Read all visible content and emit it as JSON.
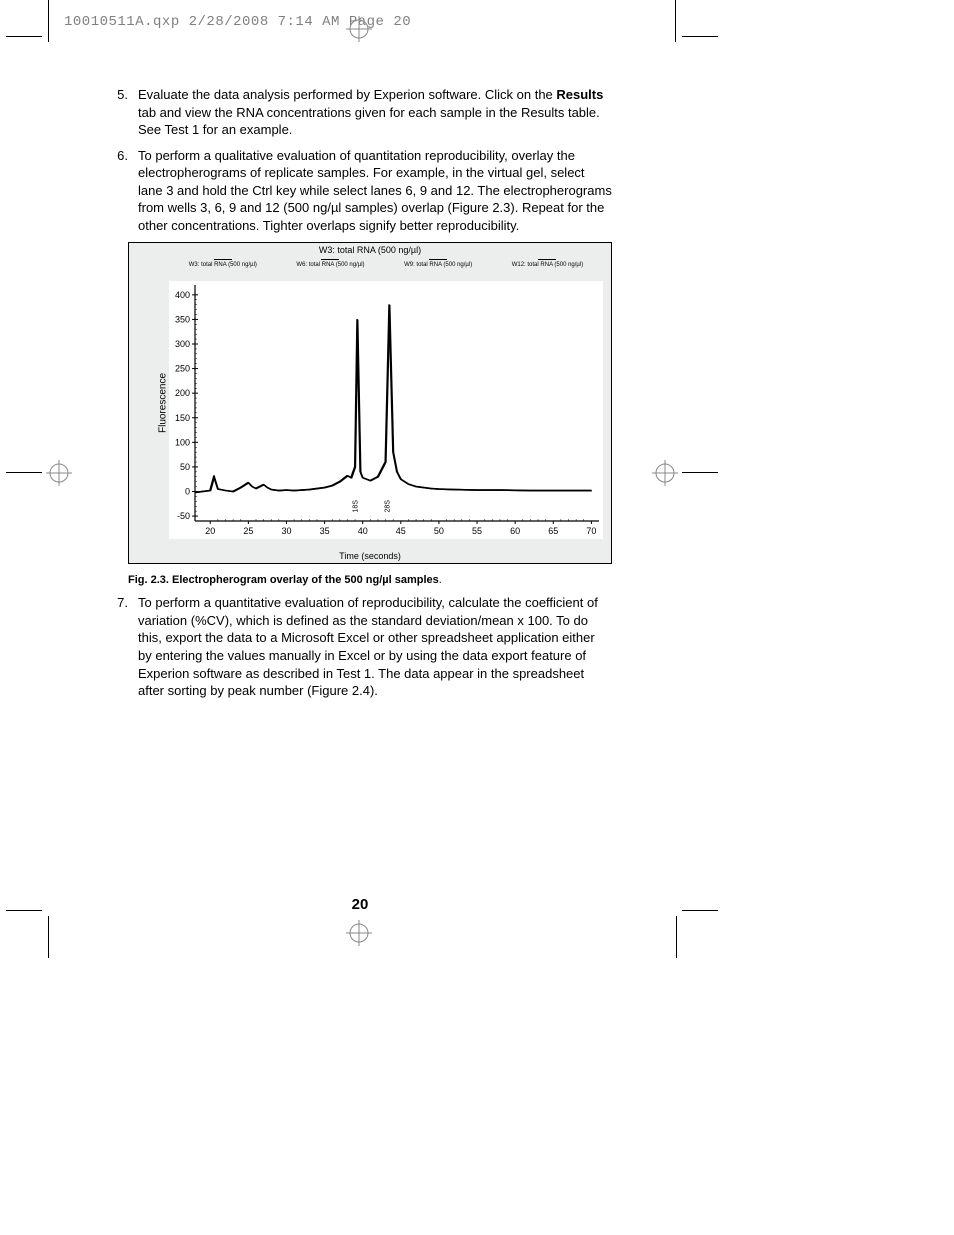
{
  "header": {
    "slug": "10010511A.qxp  2/28/2008  7:14 AM  Page 20"
  },
  "items": [
    {
      "num": "5.",
      "text_before": "Evaluate the data analysis performed by Experion software. Click on the ",
      "bold": "Results",
      "text_after": " tab and view the RNA concentrations given for each sample in the Results table. See Test 1 for an example."
    },
    {
      "num": "6.",
      "text": "To perform a qualitative evaluation of quantitation reproducibility, overlay the electropherograms of replicate samples. For example, in the virtual gel, select lane 3 and hold the Ctrl key while select lanes 6, 9 and 12. The electropherograms from wells 3, 6, 9 and 12 (500 ng/µl samples) overlap (Figure 2.3). Repeat for the other concentrations. Tighter overlaps signify better reproducibility."
    },
    {
      "num": "7.",
      "text": "To perform a quantitative evaluation of reproducibility, calculate the coefficient of variation (%CV), which is defined as the standard deviation/mean x 100. To do this, export the data to a Microsoft Excel or other spreadsheet application either by entering the values manually in Excel or by using the data export feature of Experion software as described in Test 1. The data appear in the spreadsheet after sorting by peak number (Figure 2.4)."
    }
  ],
  "chart": {
    "type": "line",
    "title": "W3: total RNA (500 ng/µl)",
    "legend": [
      "W3: total RNA (500 ng/µl)",
      "W6: total RNA (500 ng/µl)",
      "W9: total RNA (500 ng/µl)",
      "W12: total RNA (500 ng/µl)"
    ],
    "y_label": "Fluorescence",
    "x_label": "Time (seconds)",
    "y_ticks": [
      -50,
      0,
      50,
      100,
      150,
      200,
      250,
      300,
      350,
      400
    ],
    "x_ticks": [
      20,
      25,
      30,
      35,
      40,
      45,
      50,
      55,
      60,
      65,
      70
    ],
    "xlim": [
      18,
      71
    ],
    "ylim": [
      -60,
      420
    ],
    "series_color": "#000000",
    "background_color": "#eceeee",
    "plot_background": "#ffffff",
    "grid": false,
    "peak_markers": [
      "18S",
      "28S"
    ],
    "trace": [
      [
        18,
        -2
      ],
      [
        19,
        0
      ],
      [
        20,
        2
      ],
      [
        20.5,
        30
      ],
      [
        21,
        5
      ],
      [
        22,
        2
      ],
      [
        23,
        0
      ],
      [
        24,
        8
      ],
      [
        25,
        18
      ],
      [
        25.5,
        10
      ],
      [
        26,
        6
      ],
      [
        27,
        14
      ],
      [
        27.5,
        8
      ],
      [
        28,
        4
      ],
      [
        29,
        2
      ],
      [
        30,
        3
      ],
      [
        31,
        2
      ],
      [
        32,
        3
      ],
      [
        33,
        4
      ],
      [
        34,
        6
      ],
      [
        35,
        8
      ],
      [
        36,
        12
      ],
      [
        37,
        20
      ],
      [
        38,
        32
      ],
      [
        38.5,
        28
      ],
      [
        39,
        50
      ],
      [
        39.3,
        350
      ],
      [
        39.7,
        40
      ],
      [
        40,
        28
      ],
      [
        41,
        22
      ],
      [
        42,
        30
      ],
      [
        42.5,
        45
      ],
      [
        43,
        60
      ],
      [
        43.5,
        380
      ],
      [
        44,
        80
      ],
      [
        44.5,
        40
      ],
      [
        45,
        25
      ],
      [
        46,
        15
      ],
      [
        47,
        10
      ],
      [
        48,
        8
      ],
      [
        49,
        6
      ],
      [
        50,
        5
      ],
      [
        52,
        4
      ],
      [
        55,
        3
      ],
      [
        58,
        3
      ],
      [
        62,
        2
      ],
      [
        66,
        2
      ],
      [
        70,
        2
      ]
    ]
  },
  "figure_caption": {
    "label": "Fig. 2.3.  Electropherogram overlay of the 500 ng/µl samples",
    "suffix": "."
  },
  "page_number": "20",
  "colors": {
    "text": "#000000",
    "header_gray": "#808080",
    "chart_bg": "#eceeee"
  }
}
